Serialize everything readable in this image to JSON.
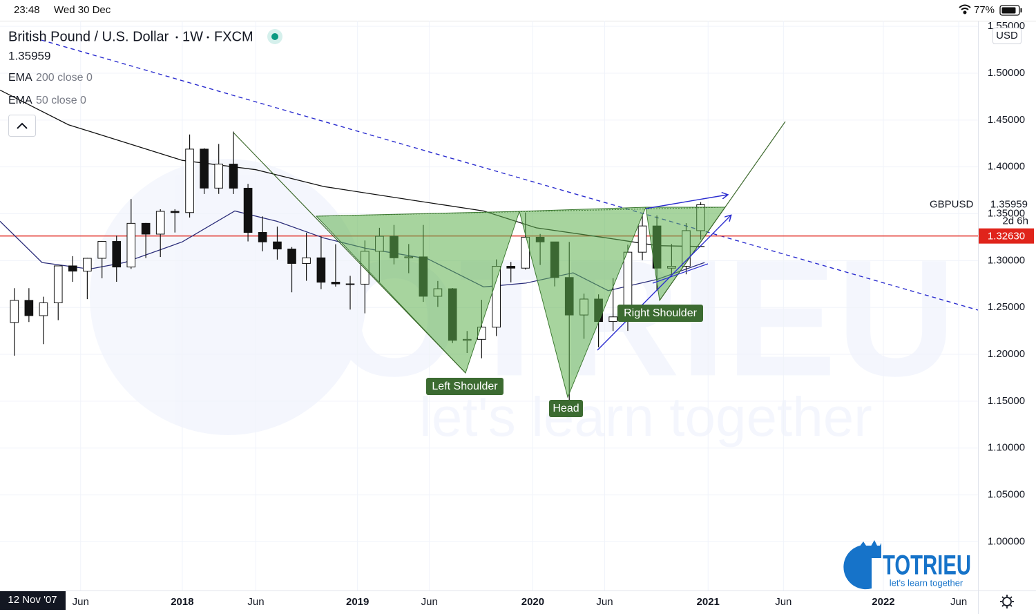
{
  "status_bar": {
    "time": "23:48",
    "date": "Wed 30 Dec",
    "battery": "77%"
  },
  "chart_data": {
    "type": "candlestick",
    "symbol_name": "British Pound / U.S. Dollar",
    "interval": "1W",
    "exchange": "FXCM",
    "last_price": 1.35959,
    "currency": "USD",
    "crosshair_date": "12 Nov '07",
    "indicators": [
      {
        "label": "EMA",
        "params": "200 close 0",
        "color": "#111111",
        "x": [
          2016.96,
          2017.35,
          2018.0,
          2018.42,
          2018.81,
          2019.33,
          2019.72,
          2020.02,
          2020.43,
          2020.71,
          2020.98
        ],
        "values": [
          1.482,
          1.445,
          1.407,
          1.397,
          1.379,
          1.364,
          1.353,
          1.335,
          1.324,
          1.316,
          1.315
        ]
      },
      {
        "label": "EMA",
        "params": "50 close 0",
        "color": "#2b2d7a",
        "x": [
          2016.96,
          2017.2,
          2017.47,
          2017.67,
          2018.0,
          2018.3,
          2018.54,
          2018.81,
          2019.05,
          2019.4,
          2019.72,
          2019.96,
          2020.23,
          2020.43,
          2020.71,
          2020.98
        ],
        "values": [
          1.342,
          1.298,
          1.291,
          1.298,
          1.32,
          1.353,
          1.342,
          1.324,
          1.313,
          1.302,
          1.272,
          1.276,
          1.287,
          1.268,
          1.28,
          1.298
        ]
      }
    ],
    "candle_colors": {
      "up": "#ffffff",
      "down": "#111111"
    },
    "x": [
      2017.042,
      2017.125,
      2017.208,
      2017.292,
      2017.375,
      2017.458,
      2017.542,
      2017.625,
      2017.708,
      2017.792,
      2017.875,
      2017.958,
      2018.042,
      2018.125,
      2018.208,
      2018.292,
      2018.375,
      2018.458,
      2018.542,
      2018.625,
      2018.708,
      2018.792,
      2018.875,
      2018.958,
      2019.042,
      2019.125,
      2019.208,
      2019.292,
      2019.375,
      2019.458,
      2019.542,
      2019.625,
      2019.708,
      2019.792,
      2019.875,
      2019.958,
      2020.042,
      2020.125,
      2020.208,
      2020.292,
      2020.375,
      2020.458,
      2020.542,
      2020.625,
      2020.708,
      2020.792,
      2020.875,
      2020.958
    ],
    "open": [
      1.234,
      1.2576,
      1.2413,
      1.255,
      1.2944,
      1.2888,
      1.3025,
      1.3205,
      1.2932,
      1.3398,
      1.3283,
      1.3526,
      1.3513,
      1.419,
      1.3774,
      1.403,
      1.3773,
      1.3301,
      1.32,
      1.3124,
      1.297,
      1.303,
      1.277,
      1.2752,
      1.2749,
      1.31,
      1.326,
      1.303,
      1.304,
      1.262,
      1.27,
      1.215,
      1.216,
      1.229,
      1.294,
      1.292,
      1.325,
      1.32,
      1.282,
      1.242,
      1.259,
      1.235,
      1.24,
      1.309,
      1.337,
      1.292,
      1.294,
      1.332
    ],
    "high": [
      1.2706,
      1.2706,
      1.2615,
      1.2905,
      1.3048,
      1.303,
      1.321,
      1.3268,
      1.3657,
      1.3402,
      1.3548,
      1.3549,
      1.4346,
      1.42,
      1.4245,
      1.4377,
      1.3819,
      1.3472,
      1.3363,
      1.3145,
      1.3298,
      1.3258,
      1.3175,
      1.2838,
      1.3215,
      1.335,
      1.3381,
      1.3177,
      1.3381,
      1.2783,
      1.2708,
      1.2249,
      1.2582,
      1.3013,
      1.2986,
      1.3514,
      1.3285,
      1.32,
      1.32,
      1.2648,
      1.264,
      1.2813,
      1.317,
      1.3482,
      1.3482,
      1.3177,
      1.34,
      1.3625
    ],
    "low": [
      1.1986,
      1.2345,
      1.2109,
      1.2365,
      1.2774,
      1.2589,
      1.2812,
      1.2774,
      1.2912,
      1.3027,
      1.3039,
      1.33,
      1.346,
      1.3711,
      1.3712,
      1.3711,
      1.3205,
      1.31,
      1.3011,
      1.2662,
      1.2785,
      1.2696,
      1.2723,
      1.2478,
      1.2438,
      1.2773,
      1.296,
      1.2866,
      1.256,
      1.2506,
      1.212,
      1.2015,
      1.1958,
      1.2195,
      1.2768,
      1.2905,
      1.2954,
      1.2725,
      1.1409,
      1.2166,
      1.2076,
      1.225,
      1.225,
      1.3005,
      1.2676,
      1.2846,
      1.2854,
      1.3225
    ],
    "close": [
      1.2576,
      1.2413,
      1.255,
      1.2944,
      1.2888,
      1.3025,
      1.3205,
      1.2932,
      1.3398,
      1.3283,
      1.3526,
      1.3513,
      1.419,
      1.3774,
      1.403,
      1.3773,
      1.3301,
      1.32,
      1.3124,
      1.297,
      1.303,
      1.277,
      1.2752,
      1.2749,
      1.31,
      1.326,
      1.303,
      1.304,
      1.262,
      1.27,
      1.215,
      1.216,
      1.229,
      1.294,
      1.292,
      1.325,
      1.32,
      1.282,
      1.242,
      1.259,
      1.235,
      1.24,
      1.309,
      1.337,
      1.292,
      1.294,
      1.332,
      1.3596
    ],
    "xlim": [
      2016.96,
      2022.54
    ],
    "ylim": [
      0.948,
      1.556
    ],
    "xticks": [
      {
        "value": 2017.42,
        "label": "Jun"
      },
      2018,
      {
        "value": 2018.42,
        "label": "Jun"
      },
      2019,
      {
        "value": 2019.41,
        "label": "Jun"
      },
      2020,
      {
        "value": 2020.41,
        "label": "Jun"
      },
      2021,
      {
        "value": 2021.43,
        "label": "Jun"
      },
      2022,
      {
        "value": 2022.43,
        "label": "Jun"
      }
    ],
    "yticks": [
      {
        "value": 1.55,
        "label": "1.55000"
      },
      {
        "value": 1.5,
        "label": "1.50000"
      },
      {
        "value": 1.45,
        "label": "1.45000"
      },
      {
        "value": 1.4,
        "label": "1.40000"
      },
      {
        "value": 1.35,
        "label": "1.35000"
      },
      {
        "value": 1.3,
        "label": "1.30000"
      },
      {
        "value": 1.25,
        "label": "1.25000"
      },
      {
        "value": 1.2,
        "label": "1.20000"
      },
      {
        "value": 1.15,
        "label": "1.15000"
      },
      {
        "value": 1.1,
        "label": "1.10000"
      },
      {
        "value": 1.05,
        "label": "1.05000"
      },
      {
        "value": 1.0,
        "label": "1.00000"
      }
    ],
    "grid": true,
    "price_tag": {
      "symbol": "GBPUSD",
      "countdown": "2d 6h"
    },
    "hline": {
      "value": 1.3263,
      "label": "1.32630",
      "color": "#e0241b"
    },
    "annotations": {
      "left": "Left Shoulder",
      "head": "Head",
      "right": "Right Shoulder"
    }
  },
  "logo": {
    "name": "TOTRIEU",
    "slogan": "let's learn together"
  }
}
